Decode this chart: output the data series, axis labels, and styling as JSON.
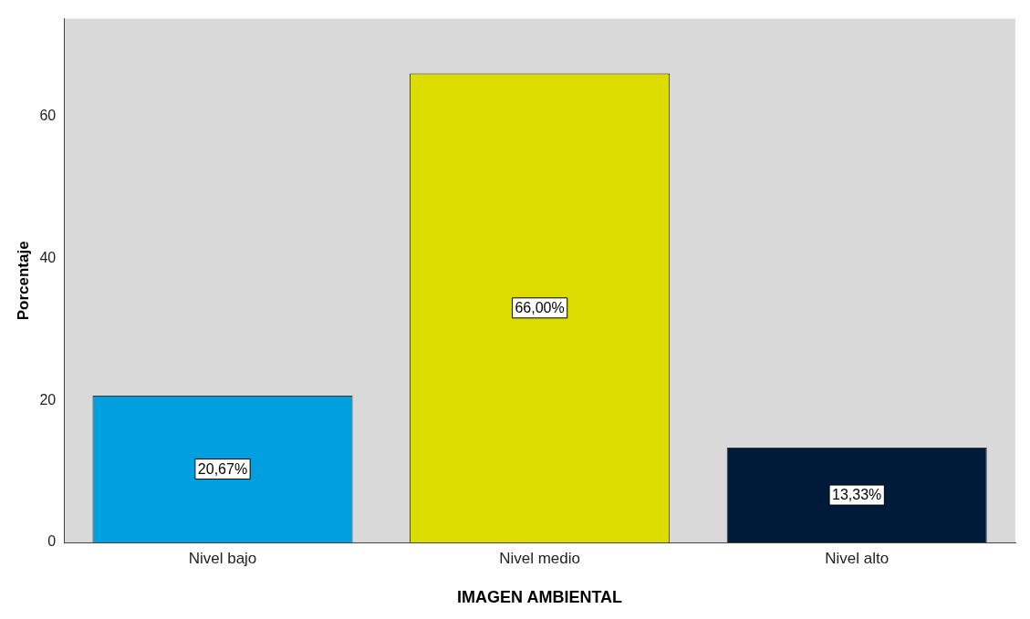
{
  "chart_data": {
    "type": "bar",
    "xlabel": "IMAGEN AMBIENTAL",
    "ylabel": "Porcentaje",
    "categories": [
      "Nivel bajo",
      "Nivel medio",
      "Nivel alto"
    ],
    "values": [
      20.67,
      66,
      13.33
    ],
    "colors": [
      "#009fdf",
      "#dcdc00",
      "#001a3a"
    ],
    "value_labels": [
      "20,67%",
      "66,00%",
      "13,33%"
    ],
    "ylim": [
      0,
      73.7
    ],
    "yticks": [
      0,
      20,
      40,
      60
    ],
    "grid": false,
    "legend": false
  }
}
